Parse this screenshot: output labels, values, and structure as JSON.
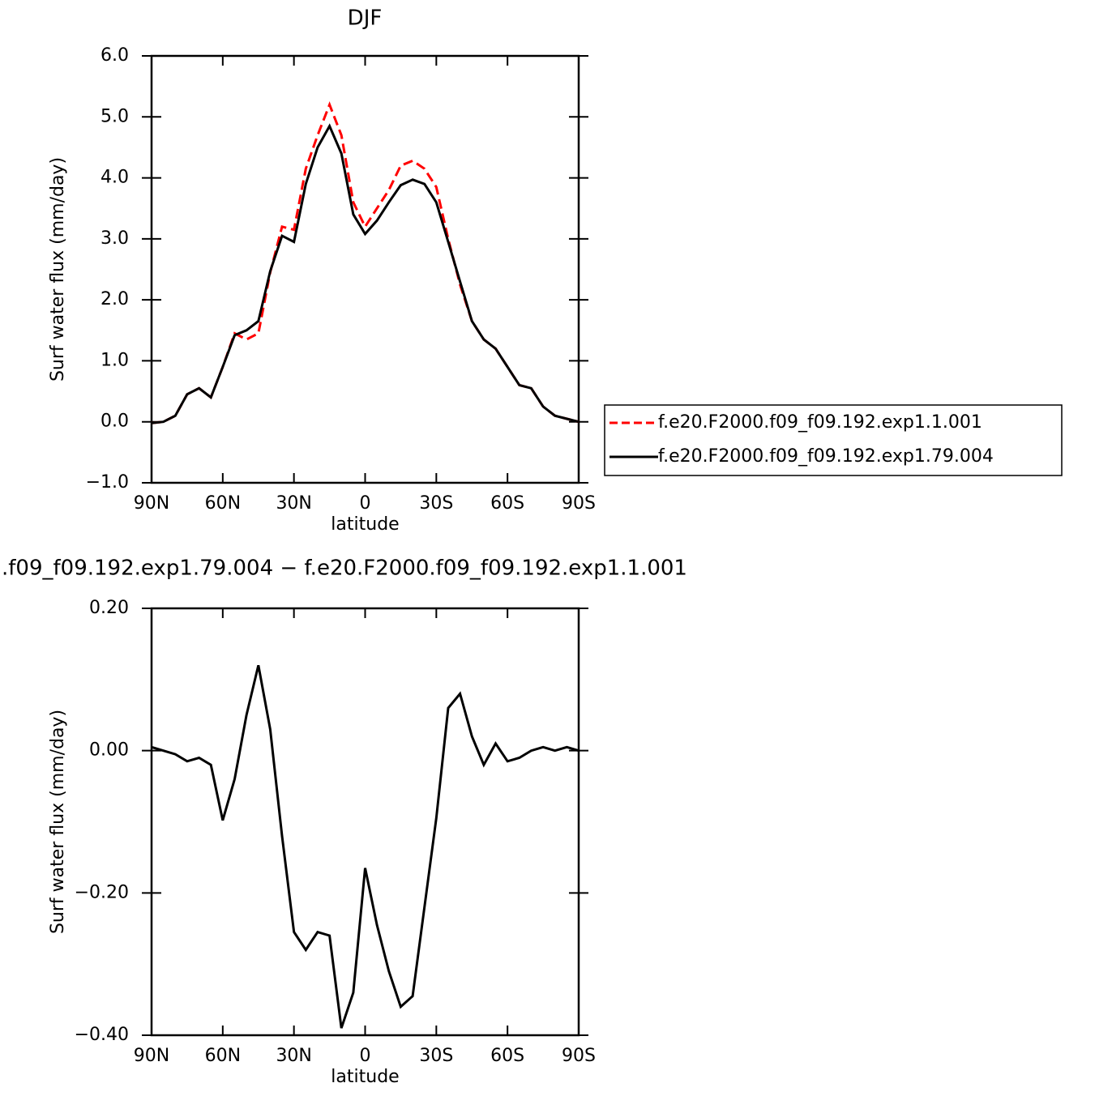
{
  "chart_data": [
    {
      "type": "line",
      "title": "DJF",
      "xlabel": "latitude",
      "ylabel": "Surf water flux (mm/day)",
      "x": [
        90,
        85,
        80,
        75,
        70,
        65,
        60,
        55,
        50,
        45,
        40,
        35,
        30,
        25,
        20,
        15,
        10,
        5,
        0,
        -5,
        -10,
        -15,
        -20,
        -25,
        -30,
        -35,
        -40,
        -45,
        -50,
        -55,
        -60,
        -65,
        -70,
        -75,
        -80,
        -85,
        -90
      ],
      "series": [
        {
          "name": "f.e20.F2000.f09_f09.192.exp1.1.001",
          "color": "#ff0000",
          "linestyle": "dashed",
          "values": [
            -0.02,
            0.0,
            0.1,
            0.45,
            0.55,
            0.4,
            0.9,
            1.45,
            1.35,
            1.45,
            2.45,
            3.2,
            3.15,
            4.15,
            4.7,
            5.2,
            4.7,
            3.6,
            3.2,
            3.5,
            3.8,
            4.2,
            4.28,
            4.15,
            3.85,
            3.0,
            2.25,
            1.65,
            1.35,
            1.2,
            0.9,
            0.6,
            0.55,
            0.25,
            0.1,
            0.05,
            0.0
          ]
        },
        {
          "name": "f.e20.F2000.f09_f09.192.exp1.79.004",
          "color": "#000000",
          "linestyle": "solid",
          "values": [
            -0.02,
            0.0,
            0.1,
            0.45,
            0.55,
            0.4,
            0.9,
            1.42,
            1.5,
            1.65,
            2.47,
            3.05,
            2.95,
            3.9,
            4.5,
            4.85,
            4.4,
            3.4,
            3.08,
            3.3,
            3.6,
            3.88,
            3.97,
            3.9,
            3.6,
            2.95,
            2.3,
            1.65,
            1.35,
            1.2,
            0.9,
            0.6,
            0.55,
            0.25,
            0.1,
            0.05,
            0.0
          ]
        }
      ],
      "xlim": [
        90,
        -90
      ],
      "xticks": [
        {
          "value": 90,
          "label": "90N"
        },
        {
          "value": 60,
          "label": "60N"
        },
        {
          "value": 30,
          "label": "30N"
        },
        0,
        {
          "value": -30,
          "label": "30S"
        },
        {
          "value": -60,
          "label": "60S"
        },
        {
          "value": -90,
          "label": "90S"
        }
      ],
      "ylim": [
        -1,
        6
      ],
      "yticks": [
        {
          "value": -1,
          "label": "−1.0"
        },
        {
          "value": 0,
          "label": "0.0"
        },
        {
          "value": 1,
          "label": "1.0"
        },
        {
          "value": 2,
          "label": "2.0"
        },
        {
          "value": 3,
          "label": "3.0"
        },
        {
          "value": 4,
          "label": "4.0"
        },
        {
          "value": 5,
          "label": "5.0"
        },
        {
          "value": 6,
          "label": "6.0"
        }
      ],
      "legend": "right"
    },
    {
      "type": "line",
      "title": ".f09_f09.192.exp1.79.004 − f.e20.F2000.f09_f09.192.exp1.1.001",
      "xlabel": "latitude",
      "ylabel": "Surf water flux (mm/day)",
      "x": [
        90,
        85,
        80,
        75,
        70,
        65,
        60,
        55,
        50,
        45,
        40,
        35,
        30,
        25,
        20,
        15,
        10,
        5,
        0,
        -5,
        -10,
        -15,
        -20,
        -25,
        -30,
        -35,
        -40,
        -45,
        -50,
        -55,
        -60,
        -65,
        -70,
        -75,
        -80,
        -85,
        -90
      ],
      "series": [
        {
          "color": "#000000",
          "linestyle": "solid",
          "values": [
            0.005,
            0.0,
            -0.005,
            -0.015,
            -0.01,
            -0.02,
            -0.098,
            -0.04,
            0.05,
            0.12,
            0.03,
            -0.12,
            -0.255,
            -0.28,
            -0.255,
            -0.26,
            -0.39,
            -0.34,
            -0.165,
            -0.245,
            -0.31,
            -0.36,
            -0.345,
            -0.22,
            -0.095,
            0.06,
            0.08,
            0.02,
            -0.02,
            0.01,
            -0.015,
            -0.01,
            0.0,
            0.005,
            0.0,
            0.005,
            0.0
          ]
        }
      ],
      "xlim": [
        90,
        -90
      ],
      "xticks": [
        {
          "value": 90,
          "label": "90N"
        },
        {
          "value": 60,
          "label": "60N"
        },
        {
          "value": 30,
          "label": "30N"
        },
        0,
        {
          "value": -30,
          "label": "30S"
        },
        {
          "value": -60,
          "label": "60S"
        },
        {
          "value": -90,
          "label": "90S"
        }
      ],
      "ylim": [
        -0.4,
        0.2
      ],
      "yticks": [
        {
          "value": -0.4,
          "label": "−0.40"
        },
        {
          "value": -0.2,
          "label": "−0.20"
        },
        {
          "value": 0,
          "label": "0.00"
        },
        {
          "value": 0.2,
          "label": "0.20"
        }
      ]
    }
  ]
}
